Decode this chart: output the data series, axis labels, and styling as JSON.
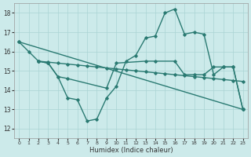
{
  "xlabel": "Humidex (Indice chaleur)",
  "xlim": [
    -0.5,
    23.5
  ],
  "ylim": [
    11.5,
    18.5
  ],
  "xticks": [
    0,
    1,
    2,
    3,
    4,
    5,
    6,
    7,
    8,
    9,
    10,
    11,
    12,
    13,
    14,
    15,
    16,
    17,
    18,
    19,
    20,
    21,
    22,
    23
  ],
  "yticks": [
    12,
    13,
    14,
    15,
    16,
    17,
    18
  ],
  "background_color": "#cceaea",
  "grid_color": "#aad4d4",
  "line_color": "#2a7a72",
  "line_width": 1.0,
  "marker": "D",
  "marker_size": 1.8,
  "lines": [
    {
      "x": [
        0,
        1,
        2,
        3,
        4,
        5,
        6,
        7,
        8,
        9,
        10,
        11,
        12,
        13,
        14,
        15,
        16,
        17,
        18,
        19,
        20,
        21,
        22,
        23
      ],
      "y": [
        16.5,
        16.0,
        15.5,
        15.4,
        14.7,
        13.6,
        13.5,
        12.4,
        12.5,
        13.6,
        14.2,
        15.5,
        15.8,
        16.7,
        16.8,
        18.0,
        18.2,
        16.9,
        17.0,
        16.9,
        14.8,
        15.2,
        15.2,
        13.0
      ]
    },
    {
      "x": [
        2,
        3,
        4,
        5,
        6,
        7,
        8,
        9,
        10,
        11,
        12,
        13,
        14,
        15,
        16,
        17,
        18,
        19,
        20,
        21,
        22,
        23
      ],
      "y": [
        15.5,
        15.45,
        15.4,
        15.35,
        15.3,
        15.25,
        15.2,
        15.15,
        15.1,
        15.05,
        15.0,
        14.95,
        14.9,
        14.85,
        14.8,
        14.75,
        14.7,
        14.65,
        14.6,
        14.55,
        14.5,
        14.45
      ]
    },
    {
      "x": [
        0,
        23
      ],
      "y": [
        16.5,
        13.0
      ]
    },
    {
      "x": [
        2,
        3,
        4,
        5,
        9,
        10,
        13,
        14,
        16,
        17,
        18,
        19,
        20,
        21,
        22,
        23
      ],
      "y": [
        15.5,
        15.4,
        14.7,
        14.6,
        14.1,
        15.4,
        15.5,
        15.5,
        15.5,
        14.8,
        14.8,
        14.8,
        15.2,
        15.2,
        15.2,
        13.0
      ]
    }
  ]
}
